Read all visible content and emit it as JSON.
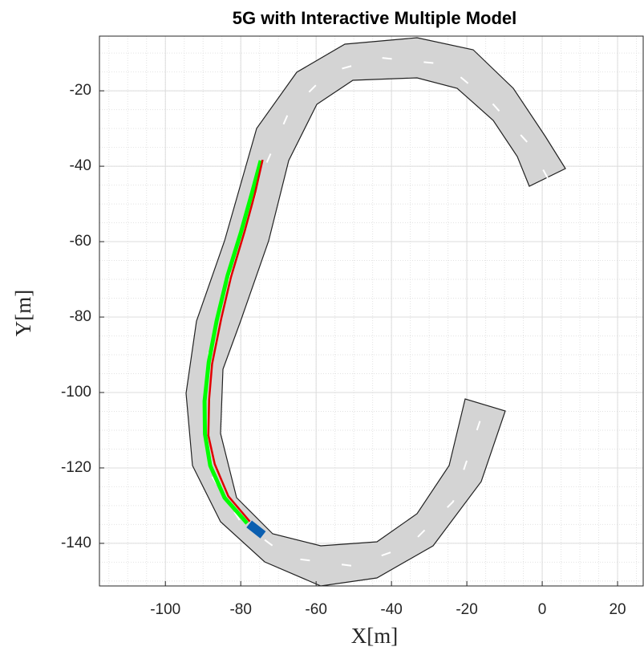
{
  "chart_data": {
    "type": "line",
    "title": "5G with Interactive Multiple Model",
    "xlabel": "X[m]",
    "ylabel": "Y[m]",
    "xlim": [
      -117.5,
      26.8
    ],
    "ylim": [
      -151.3,
      -5.5
    ],
    "xticks": [
      -100,
      -80,
      -60,
      -40,
      -20,
      0,
      20
    ],
    "yticks": [
      -140,
      -120,
      -100,
      -80,
      -60,
      -40,
      -20
    ],
    "grid": true,
    "minor_grid": true,
    "series": [
      {
        "color": "#00ff00",
        "x": [
          -74.7,
          -77,
          -80,
          -83.5,
          -86.4,
          -88.5,
          -89.6,
          -89.5,
          -88.1,
          -84.3,
          -78.3
        ],
        "values": [
          -38.5,
          -47,
          -57.7,
          -69,
          -81,
          -92,
          -102.3,
          -111,
          -119.4,
          -127.9,
          -134.7
        ]
      },
      {
        "color": "#e00000",
        "x": [
          -74.2,
          -76.3,
          -78.9,
          -82.6,
          -85.2,
          -87.6,
          -88.4,
          -88.6,
          -86.9,
          -83.3,
          -77.6
        ],
        "values": [
          -38.3,
          -47.5,
          -57,
          -69.4,
          -80.5,
          -92.4,
          -101.8,
          -111.4,
          -119,
          -127.5,
          -134.2
        ]
      }
    ]
  }
}
